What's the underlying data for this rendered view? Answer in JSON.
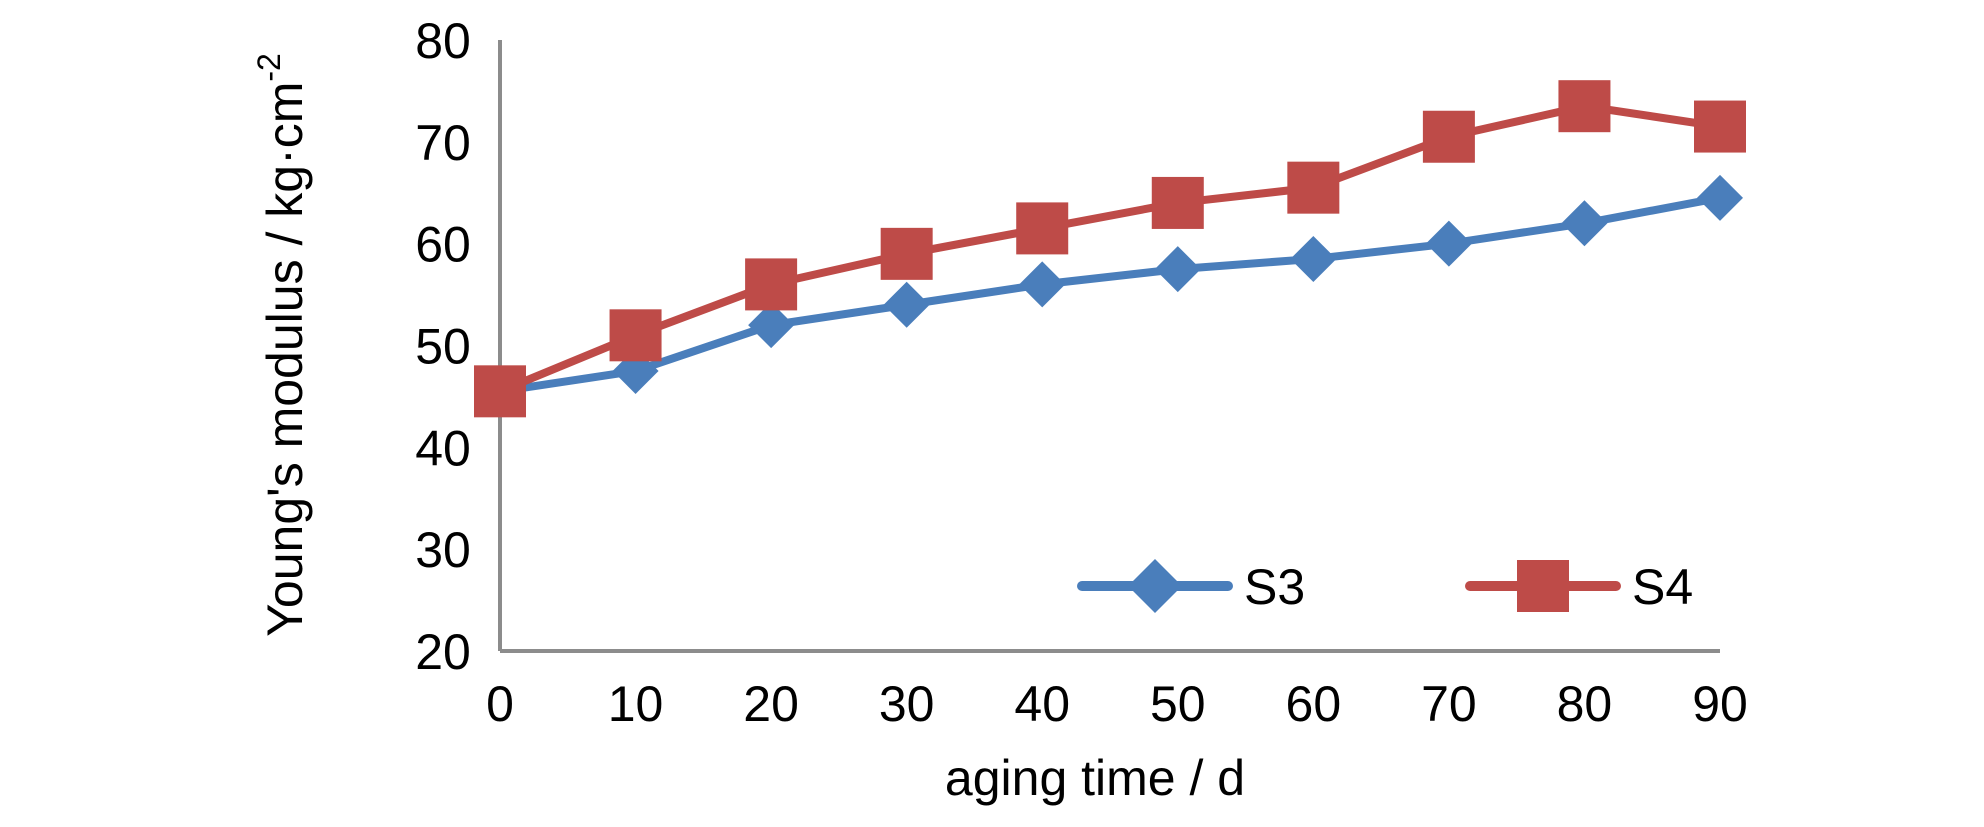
{
  "chart_data": {
    "type": "line",
    "title": "",
    "xlabel": "aging time / d",
    "ylabel": "Young's modulus / kg·cm",
    "ylabel_sup": "-2",
    "x": [
      0,
      10,
      20,
      30,
      40,
      50,
      60,
      70,
      80,
      90
    ],
    "xlim": [
      0,
      90
    ],
    "ylim": [
      20,
      80
    ],
    "yticks": [
      20,
      30,
      40,
      50,
      60,
      70,
      80
    ],
    "grid": false,
    "legend_position": "bottom-right",
    "series": [
      {
        "name": "S3",
        "color": "#4a7ebb",
        "marker": "diamond",
        "values": [
          45.5,
          47.5,
          52,
          54,
          56,
          57.5,
          58.5,
          60,
          62,
          64.5
        ]
      },
      {
        "name": "S4",
        "color": "#be4b48",
        "marker": "square",
        "values": [
          45.5,
          51,
          56,
          59,
          61.5,
          64,
          65.5,
          70.5,
          73.5,
          71.5
        ]
      }
    ]
  }
}
